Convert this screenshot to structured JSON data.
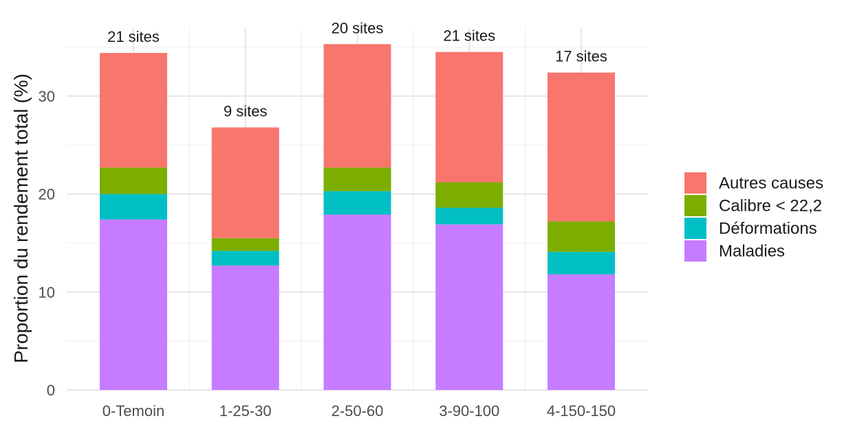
{
  "chart_data": {
    "type": "bar",
    "stacked": true,
    "title": "",
    "xlabel": "",
    "ylabel": "Proportion du rendement total (%)",
    "ylim": [
      0,
      37
    ],
    "yticks": [
      0,
      10,
      20,
      30
    ],
    "grid": true,
    "legend_position": "right",
    "categories": [
      "0-Temoin",
      "1-25-30",
      "2-50-60",
      "3-90-100",
      "4-150-150"
    ],
    "series": [
      {
        "name": "Maladies",
        "color": "#C77CFF",
        "values": [
          17.4,
          12.7,
          17.9,
          16.9,
          11.8
        ]
      },
      {
        "name": "Déformations",
        "color": "#00BFC4",
        "values": [
          2.6,
          1.5,
          2.4,
          1.7,
          2.3
        ]
      },
      {
        "name": "Calibre < 22,2",
        "color": "#7CAE00",
        "values": [
          2.7,
          1.3,
          2.4,
          2.6,
          3.1
        ]
      },
      {
        "name": "Autres causes",
        "color": "#F8766D",
        "values": [
          11.7,
          11.3,
          12.6,
          13.3,
          15.2
        ]
      }
    ],
    "legend_order": [
      "Autres causes",
      "Calibre < 22,2",
      "Déformations",
      "Maladies"
    ],
    "bar_labels": [
      "21 sites",
      "9 sites",
      "20 sites",
      "21 sites",
      "17 sites"
    ]
  }
}
